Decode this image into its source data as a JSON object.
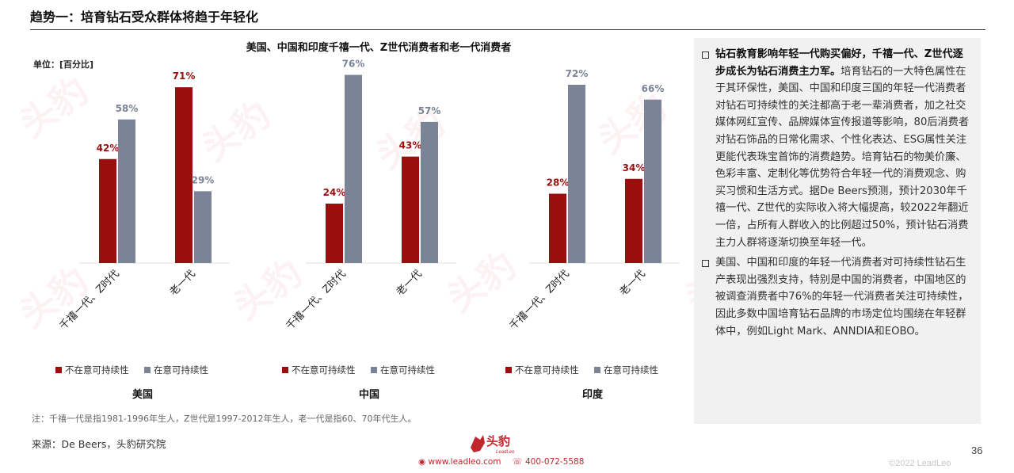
{
  "header": {
    "title": "趋势一：培育钻石受众群体将趋于年轻化"
  },
  "chart_title": "美国、中国和印度千禧一代、Z世代消费者和老一代消费者",
  "unit_label": "单位：[百分比]",
  "chart_data": {
    "type": "bar",
    "ylim": [
      0,
      80
    ],
    "categories": [
      "千禧一代、Z时代",
      "老一代"
    ],
    "series_names": [
      "不在意可持续性",
      "在意可持续性"
    ],
    "colors": {
      "not_care": "#9b0e0e",
      "care": "#7a8496"
    },
    "groups": [
      {
        "country": "美国",
        "series": [
          {
            "name": "不在意可持续性",
            "values": [
              42,
              71
            ]
          },
          {
            "name": "在意可持续性",
            "values": [
              58,
              29
            ]
          }
        ]
      },
      {
        "country": "中国",
        "series": [
          {
            "name": "不在意可持续性",
            "values": [
              24,
              43
            ]
          },
          {
            "name": "在意可持续性",
            "values": [
              76,
              57
            ]
          }
        ]
      },
      {
        "country": "印度",
        "series": [
          {
            "name": "不在意可持续性",
            "values": [
              28,
              34
            ]
          },
          {
            "name": "在意可持续性",
            "values": [
              72,
              66
            ]
          }
        ]
      }
    ]
  },
  "note": "注：千禧一代是指1981-1996年生人，Z世代是1997-2012年生人，老一代是指60、70年代生人。",
  "source": "来源：De Beers，头豹研究院",
  "panel": {
    "bullets": [
      {
        "lead": "钻石教育影响年轻一代购买偏好，千禧一代、Z世代逐步成长为钻石消费主力军。",
        "body": "培育钻石的一大特色属性在于其环保性，美国、中国和印度三国的年轻一代消费者对钻石可持续性的关注都高于老一辈消费者，加之社交媒体网红宣传、品牌媒体宣传报道等影响，80后消费者对钻石饰品的日常化需求、个性化表达、ESG属性关注更能代表珠宝首饰的消费趋势。培育钻石的物美价廉、色彩丰富、定制化等优势符合年轻一代的消费观念、购买习惯和生活方式。据De Beers预测，预计2030年千禧一代、Z世代的实际收入将大幅提高，较2022年翻近一倍，占所有人群收入的比例超过50%，预计钻石消费主力人群将逐渐切换至年轻一代。"
      },
      {
        "lead": "",
        "body": "美国、中国和印度的年轻一代消费者对可持续性钻石生产表现出强烈支持，特别是中国的消费者，中国地区的被调查消费者中76%的年轻一代消费者关注可持续性，因此多数中国培育钻石品牌的市场定位均围绕在年轻群体中，例如Light Mark、ANNDIA和EOBO。"
      }
    ]
  },
  "footer": {
    "logo_text": "头豹",
    "logo_sub": "LeadLeo",
    "website": "www.leadleo.com",
    "phone": "400-072-5588",
    "page_number": "36",
    "copyright": "©2022 LeadLeo"
  }
}
